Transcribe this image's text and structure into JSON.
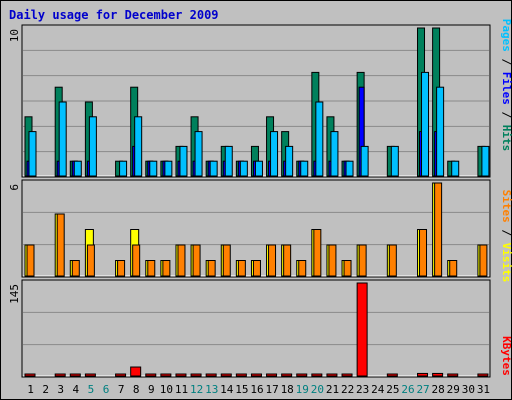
{
  "title": "Daily usage for December 2009",
  "colors": {
    "hits": "#00805c",
    "files": "#0000ff",
    "pages": "#00c0ff",
    "visits": "#ffff00",
    "sites": "#ff8000",
    "kbytes": "#ff0000",
    "weekend_label": "#008080",
    "weekday_label": "#000000",
    "panel_bg": "#c0c0c0"
  },
  "chart_data": [
    {
      "type": "bar",
      "panel": "hits",
      "categories": [
        "1",
        "2",
        "3",
        "4",
        "5",
        "6",
        "7",
        "8",
        "9",
        "10",
        "11",
        "12",
        "13",
        "14",
        "15",
        "16",
        "17",
        "18",
        "19",
        "20",
        "21",
        "22",
        "23",
        "24",
        "25",
        "26",
        "27",
        "28",
        "29",
        "30",
        "31"
      ],
      "y_tick_label": "10",
      "ylim": [
        0,
        10
      ],
      "right_labels": [
        "Pages",
        "Files",
        "Hits"
      ],
      "series": [
        {
          "name": "Hits",
          "values": [
            4,
            0,
            6,
            1,
            5,
            0,
            1,
            6,
            1,
            1,
            2,
            4,
            1,
            2,
            1,
            2,
            4,
            3,
            1,
            7,
            4,
            1,
            7,
            0,
            2,
            0,
            10,
            10,
            1,
            0,
            2
          ]
        },
        {
          "name": "Files",
          "values": [
            1,
            0,
            1,
            1,
            1,
            0,
            0,
            2,
            1,
            1,
            1,
            1,
            1,
            1,
            1,
            1,
            1,
            1,
            1,
            1,
            1,
            1,
            6,
            0,
            0,
            0,
            3,
            3,
            0,
            0,
            0
          ]
        },
        {
          "name": "Pages",
          "values": [
            3,
            0,
            5,
            1,
            4,
            0,
            1,
            4,
            1,
            1,
            2,
            3,
            1,
            2,
            1,
            1,
            3,
            2,
            1,
            5,
            3,
            1,
            2,
            0,
            2,
            0,
            7,
            6,
            1,
            0,
            2
          ]
        }
      ]
    },
    {
      "type": "bar",
      "panel": "visits",
      "categories": [
        "1",
        "2",
        "3",
        "4",
        "5",
        "6",
        "7",
        "8",
        "9",
        "10",
        "11",
        "12",
        "13",
        "14",
        "15",
        "16",
        "17",
        "18",
        "19",
        "20",
        "21",
        "22",
        "23",
        "24",
        "25",
        "26",
        "27",
        "28",
        "29",
        "30",
        "31"
      ],
      "y_tick_label": "6",
      "ylim": [
        0,
        6
      ],
      "right_labels": [
        "Sites",
        "Visits"
      ],
      "series": [
        {
          "name": "Visits",
          "values": [
            2,
            0,
            4,
            1,
            3,
            0,
            1,
            3,
            1,
            1,
            2,
            2,
            1,
            2,
            1,
            1,
            2,
            2,
            1,
            3,
            2,
            1,
            2,
            0,
            2,
            0,
            3,
            6,
            1,
            0,
            2
          ]
        },
        {
          "name": "Sites",
          "values": [
            2,
            0,
            4,
            1,
            2,
            0,
            1,
            2,
            1,
            1,
            2,
            2,
            1,
            2,
            1,
            1,
            2,
            2,
            1,
            3,
            2,
            1,
            2,
            0,
            2,
            0,
            3,
            6,
            1,
            0,
            2
          ]
        }
      ]
    },
    {
      "type": "bar",
      "panel": "kbytes",
      "categories": [
        "1",
        "2",
        "3",
        "4",
        "5",
        "6",
        "7",
        "8",
        "9",
        "10",
        "11",
        "12",
        "13",
        "14",
        "15",
        "16",
        "17",
        "18",
        "19",
        "20",
        "21",
        "22",
        "23",
        "24",
        "25",
        "26",
        "27",
        "28",
        "29",
        "30",
        "31"
      ],
      "y_tick_label": "145",
      "ylim": [
        0,
        145
      ],
      "right_labels": [
        "KBytes"
      ],
      "series": [
        {
          "name": "KBytes",
          "values": [
            2,
            0,
            2,
            2,
            2,
            0,
            2,
            14,
            2,
            2,
            2,
            2,
            2,
            2,
            2,
            2,
            2,
            2,
            2,
            2,
            2,
            2,
            145,
            0,
            2,
            0,
            4,
            4,
            2,
            0,
            2
          ]
        }
      ]
    }
  ],
  "weekend_days": [
    "5",
    "6",
    "12",
    "13",
    "19",
    "20",
    "26",
    "27"
  ]
}
